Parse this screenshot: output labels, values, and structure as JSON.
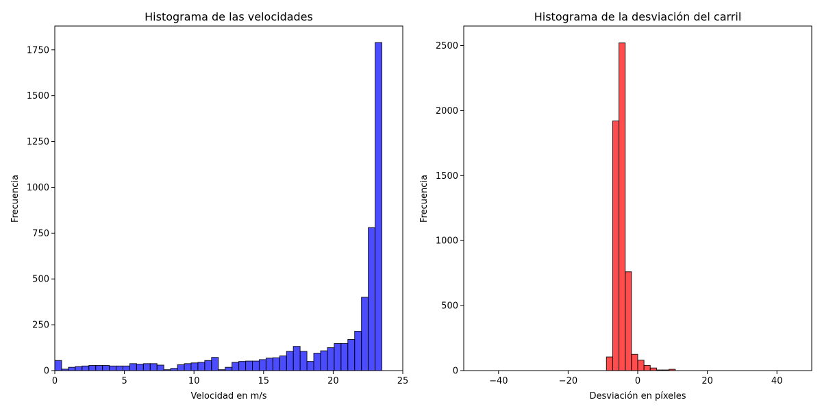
{
  "chart_data": [
    {
      "type": "bar",
      "title": "Histograma de las velocidades",
      "xlabel": "Velocidad en m/s",
      "ylabel": "Frecuencia",
      "xlim": [
        0,
        25
      ],
      "ylim": [
        0,
        1880
      ],
      "xticks": [
        0,
        5,
        10,
        15,
        20,
        25
      ],
      "xtick_labels": [
        "0",
        "5",
        "10",
        "15",
        "20",
        "25"
      ],
      "yticks": [
        0,
        250,
        500,
        750,
        1000,
        1250,
        1500,
        1750
      ],
      "ytick_labels": [
        "0",
        "250",
        "500",
        "750",
        "1000",
        "1250",
        "1500",
        "1750"
      ],
      "bin_range": [
        0,
        23.5
      ],
      "bar_color": "#0000ff",
      "bar_opacity": 0.7,
      "edge_color": "#000000",
      "values": [
        55,
        8,
        18,
        22,
        25,
        28,
        28,
        28,
        25,
        25,
        25,
        38,
        35,
        38,
        38,
        30,
        5,
        12,
        32,
        38,
        42,
        45,
        55,
        72,
        5,
        18,
        45,
        50,
        52,
        52,
        60,
        68,
        70,
        80,
        105,
        132,
        105,
        50,
        95,
        108,
        125,
        148,
        148,
        170,
        215,
        400,
        780,
        1790
      ]
    },
    {
      "type": "bar",
      "title": "Histograma de la desviación del carril",
      "xlabel": "Desviación en píxeles",
      "ylabel": "Frecuencia",
      "xlim": [
        -50,
        50
      ],
      "ylim": [
        0,
        2650
      ],
      "xticks": [
        -40,
        -20,
        0,
        20,
        40
      ],
      "xtick_labels": [
        "−40",
        "−20",
        "0",
        "20",
        "40"
      ],
      "yticks": [
        0,
        500,
        1000,
        1500,
        2000,
        2500
      ],
      "ytick_labels": [
        "0",
        "500",
        "1000",
        "1500",
        "2000",
        "2500"
      ],
      "bin_range": [
        -45,
        45
      ],
      "bar_color": "#ff0000",
      "bar_opacity": 0.7,
      "edge_color": "#000000",
      "values": [
        0,
        0,
        0,
        0,
        0,
        0,
        0,
        0,
        0,
        0,
        0,
        0,
        0,
        0,
        0,
        0,
        0,
        0,
        0,
        0,
        105,
        1920,
        2520,
        760,
        125,
        80,
        40,
        20,
        5,
        5,
        10,
        0,
        0,
        0,
        0,
        0,
        0,
        0,
        0,
        0,
        0,
        0,
        0,
        0,
        0,
        0,
        0,
        0,
        0,
        0
      ]
    }
  ]
}
